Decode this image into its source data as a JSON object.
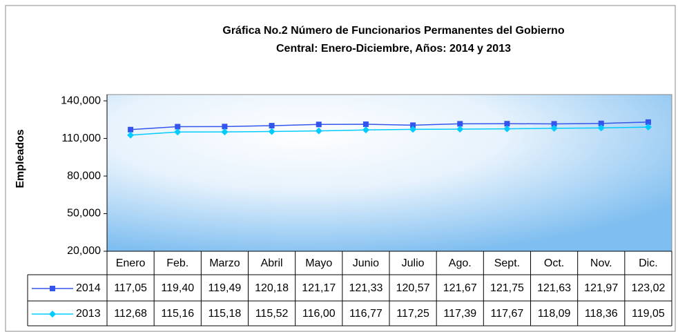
{
  "chart_data": {
    "type": "line",
    "title": [
      "Gráfica No.2 Número de Funcionarios Permanentes del Gobierno",
      "Central: Enero-Diciembre, Años: 2014 y 2013"
    ],
    "y_label": "Empleados",
    "categories": [
      "Enero",
      "Feb.",
      "Marzo",
      "Abril",
      "Mayo",
      "Junio",
      "Julio",
      "Ago.",
      "Sept.",
      "Oct.",
      "Nov.",
      "Dic."
    ],
    "series": [
      {
        "name": "2014",
        "color": "#3355ee",
        "marker": "square",
        "values": [
          117050,
          119400,
          119490,
          120180,
          121170,
          121330,
          120570,
          121670,
          121750,
          121630,
          121970,
          123020
        ],
        "value_labels": [
          "117,05",
          "119,40",
          "119,49",
          "120,18",
          "121,17",
          "121,33",
          "120,57",
          "121,67",
          "121,75",
          "121,63",
          "121,97",
          "123,02"
        ]
      },
      {
        "name": "2013",
        "color": "#00ccff",
        "marker": "diamond",
        "values": [
          112680,
          115160,
          115180,
          115520,
          116000,
          116770,
          117250,
          117390,
          117670,
          118090,
          118360,
          119050
        ],
        "value_labels": [
          "112,68",
          "115,16",
          "115,18",
          "115,52",
          "116,00",
          "116,77",
          "117,25",
          "117,39",
          "117,67",
          "118,09",
          "118,36",
          "119,05"
        ]
      }
    ],
    "ylim": [
      20000,
      145000
    ],
    "yticks": [
      {
        "value": 20000,
        "label": "20,000"
      },
      {
        "value": 50000,
        "label": "50,000"
      },
      {
        "value": 80000,
        "label": "80,000"
      },
      {
        "value": 110000,
        "label": "110,000"
      },
      {
        "value": 140000,
        "label": "140,000"
      }
    ],
    "data_table": true
  }
}
